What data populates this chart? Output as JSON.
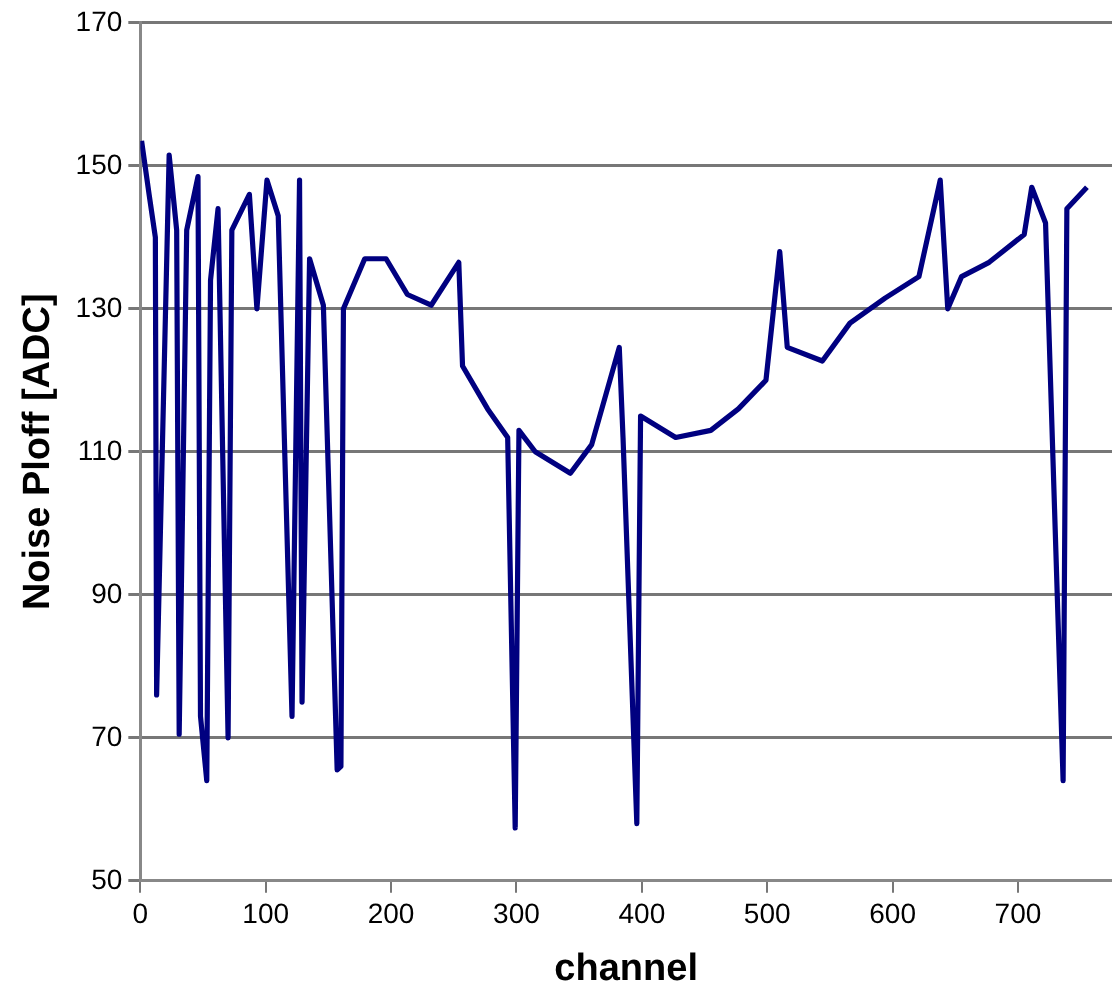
{
  "chart_data": {
    "type": "line",
    "xlabel": "channel",
    "ylabel": "Noise Ploff [ADC]",
    "xlim": [
      0,
      775
    ],
    "xticks": [
      0,
      100,
      200,
      300,
      400,
      500,
      600,
      700
    ],
    "ylim": [
      50,
      170
    ],
    "yticks": [
      50,
      70,
      90,
      110,
      130,
      150,
      170
    ],
    "grid": "y",
    "legend": false,
    "marker": "none",
    "line_style": "solid",
    "series": [
      {
        "color": "#000080",
        "x": [
          1,
          7,
          12,
          13,
          23,
          29,
          31,
          37,
          46,
          48,
          53,
          56,
          62,
          70,
          73,
          87,
          93,
          101,
          110,
          121,
          127,
          129,
          135,
          146,
          157,
          160,
          162,
          179,
          196,
          213,
          232,
          254,
          257,
          277,
          293,
          299,
          302,
          315,
          343,
          360,
          382,
          385,
          396,
          399,
          427,
          455,
          477,
          499,
          510,
          516,
          544,
          566,
          594,
          621,
          638,
          644,
          655,
          677,
          705,
          711,
          722,
          736,
          739,
          755
        ],
        "values": [
          153.5,
          146,
          140,
          76,
          151.5,
          141,
          70.5,
          141,
          148.5,
          73,
          64,
          134,
          144,
          70,
          141,
          146,
          130,
          148,
          143,
          73,
          148,
          75,
          137,
          130.5,
          65.5,
          66,
          130,
          137,
          137,
          132,
          130.5,
          136.5,
          122,
          116,
          112,
          57.4,
          113,
          110,
          107,
          111,
          124.6,
          112,
          58,
          115,
          112,
          113,
          116,
          120,
          138,
          124.6,
          122.7,
          128,
          131.5,
          134.5,
          148,
          130,
          134.5,
          136.5,
          140.4,
          147,
          142,
          64,
          144,
          147
        ]
      }
    ]
  }
}
